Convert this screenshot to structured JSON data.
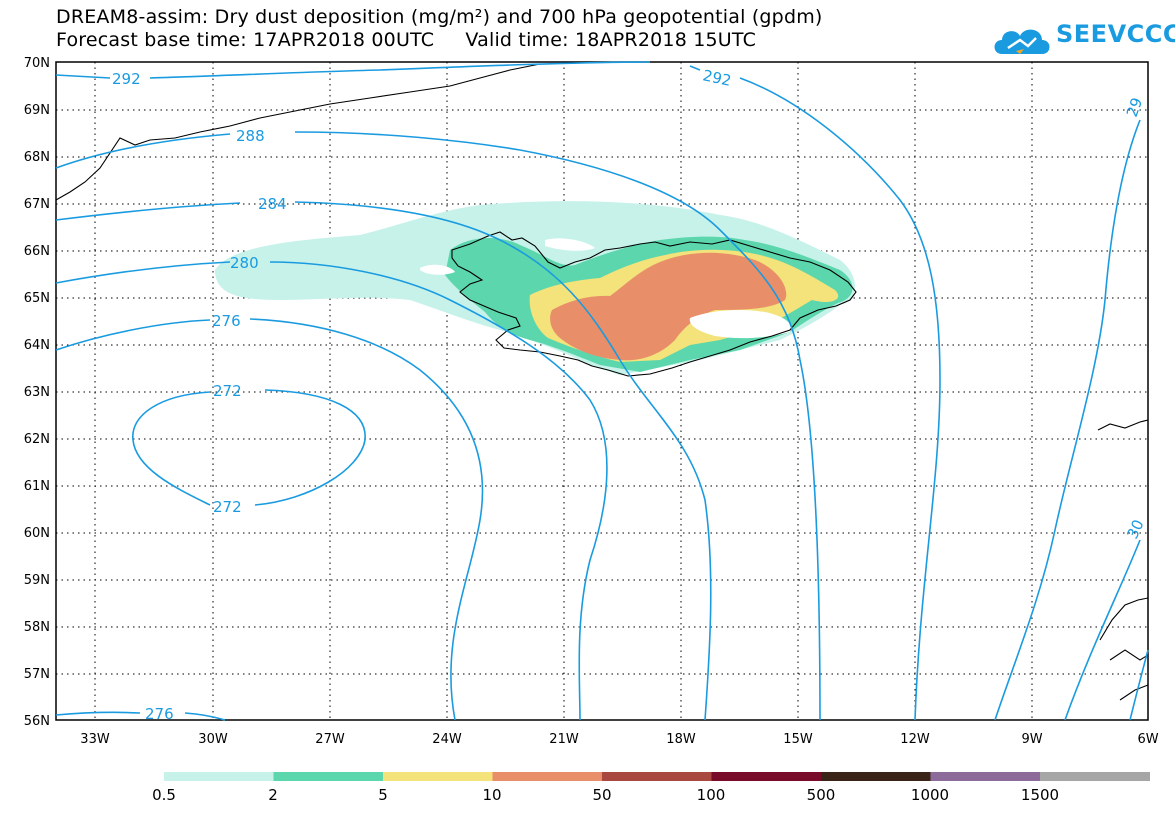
{
  "title": {
    "line1": "DREAM8-assim: Dry dust deposition (mg/m²) and 700 hPa geopotential (gpdm)",
    "line2": "Forecast base time: 17APR2018 00UTC     Valid time: 18APR2018 15UTC"
  },
  "logo": {
    "text": "SEEVCCC",
    "icon": "cloud-logo-icon",
    "color": "#1a9be0"
  },
  "map": {
    "lat_ticks": [
      "70N",
      "69N",
      "68N",
      "67N",
      "66N",
      "65N",
      "64N",
      "63N",
      "62N",
      "61N",
      "60N",
      "59N",
      "58N",
      "57N",
      "56N"
    ],
    "lon_ticks": [
      "33W",
      "30W",
      "27W",
      "24W",
      "21W",
      "18W",
      "15W",
      "12W",
      "9W",
      "6W"
    ],
    "contour_color": "#1a9be0",
    "contour_labels": [
      "292",
      "292",
      "288",
      "284",
      "280",
      "276",
      "272",
      "272",
      "276",
      "29",
      "30"
    ]
  },
  "legend": {
    "bins": [
      {
        "color": "#c6f2ea"
      },
      {
        "color": "#5cd6ac"
      },
      {
        "color": "#f4e27a"
      },
      {
        "color": "#e88f6a"
      },
      {
        "color": "#a8483e"
      },
      {
        "color": "#7a0a2a"
      },
      {
        "color": "#3a2418"
      },
      {
        "color": "#8c6a9a"
      },
      {
        "color": "#a6a6a6"
      }
    ],
    "labels": [
      "0.5",
      "2",
      "5",
      "10",
      "50",
      "100",
      "500",
      "1000",
      "1500"
    ]
  }
}
